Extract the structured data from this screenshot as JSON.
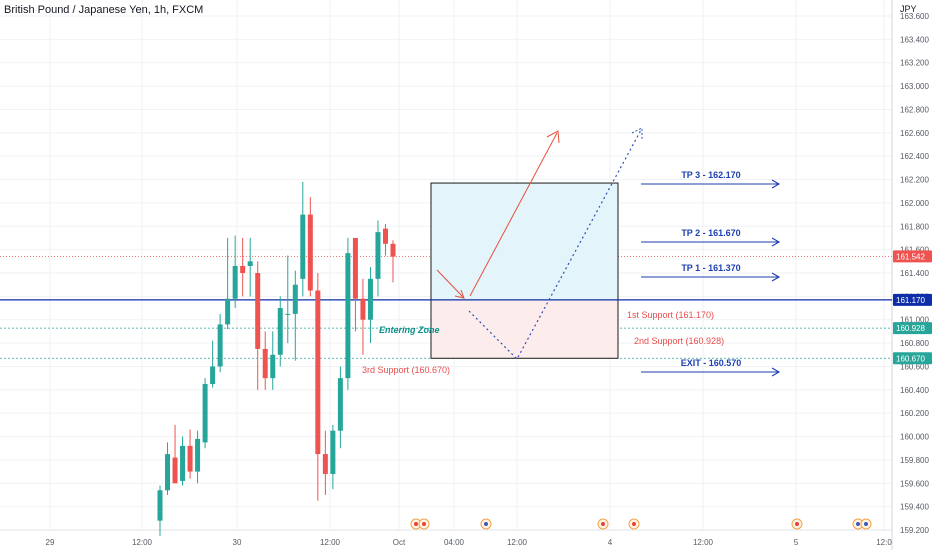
{
  "header": {
    "title": "British Pound / Japanese Yen, 1h, FXCM",
    "currency": "JPY"
  },
  "colors": {
    "up": "#26a69a",
    "down": "#ef5350",
    "blue_line": "#0d2ea8",
    "blue_text": "#1d3fb0",
    "red_text": "#e84c4c",
    "teal_text": "#0b8f8a",
    "zone_fill_top": "#e3f4fb",
    "zone_fill_bottom": "#fdecec",
    "axis_text": "#555a64",
    "grid": "#f0f2f5"
  },
  "chart_data": {
    "type": "candlestick",
    "symbol": "GBPJPY",
    "timeframe": "1h",
    "source": "FXCM",
    "ylim": [
      159.2,
      163.7
    ],
    "y_ticks": [
      "159.200",
      "159.400",
      "159.600",
      "159.800",
      "160.000",
      "160.200",
      "160.400",
      "160.600",
      "160.800",
      "161.000",
      "161.200",
      "161.400",
      "161.600",
      "161.800",
      "162.000",
      "162.200",
      "162.400",
      "162.600",
      "162.800",
      "163.000",
      "163.200",
      "163.400",
      "163.600"
    ],
    "x_ticks": [
      "29",
      "12:00",
      "30",
      "12:00",
      "Oct",
      "04:00",
      "12:00",
      "4",
      "12:00",
      "5",
      "12:0"
    ],
    "candles": [
      {
        "o": 159.28,
        "h": 159.58,
        "l": 159.15,
        "c": 159.54
      },
      {
        "o": 159.54,
        "h": 159.95,
        "l": 159.5,
        "c": 159.85
      },
      {
        "o": 159.82,
        "h": 160.1,
        "l": 159.62,
        "c": 159.6
      },
      {
        "o": 159.62,
        "h": 160.0,
        "l": 159.58,
        "c": 159.92
      },
      {
        "o": 159.92,
        "h": 160.06,
        "l": 159.64,
        "c": 159.7
      },
      {
        "o": 159.7,
        "h": 160.05,
        "l": 159.6,
        "c": 159.98
      },
      {
        "o": 159.95,
        "h": 160.5,
        "l": 159.9,
        "c": 160.45
      },
      {
        "o": 160.45,
        "h": 160.82,
        "l": 160.42,
        "c": 160.6
      },
      {
        "o": 160.6,
        "h": 161.05,
        "l": 160.55,
        "c": 160.96
      },
      {
        "o": 160.96,
        "h": 161.7,
        "l": 160.92,
        "c": 161.18
      },
      {
        "o": 161.18,
        "h": 161.72,
        "l": 161.1,
        "c": 161.46
      },
      {
        "o": 161.46,
        "h": 161.7,
        "l": 161.2,
        "c": 161.4
      },
      {
        "o": 161.46,
        "h": 161.7,
        "l": 161.2,
        "c": 161.5
      },
      {
        "o": 161.4,
        "h": 161.5,
        "l": 160.4,
        "c": 160.75
      },
      {
        "o": 160.75,
        "h": 160.9,
        "l": 160.4,
        "c": 160.5
      },
      {
        "o": 160.5,
        "h": 160.9,
        "l": 160.4,
        "c": 160.7
      },
      {
        "o": 160.7,
        "h": 161.2,
        "l": 160.6,
        "c": 161.1
      },
      {
        "o": 161.05,
        "h": 161.55,
        "l": 160.8,
        "c": 161.05
      },
      {
        "o": 161.05,
        "h": 161.42,
        "l": 160.65,
        "c": 161.3
      },
      {
        "o": 161.35,
        "h": 162.18,
        "l": 161.2,
        "c": 161.9
      },
      {
        "o": 161.9,
        "h": 162.05,
        "l": 161.2,
        "c": 161.25
      },
      {
        "o": 161.25,
        "h": 161.4,
        "l": 159.45,
        "c": 159.85
      },
      {
        "o": 159.85,
        "h": 160.05,
        "l": 159.5,
        "c": 159.68
      },
      {
        "o": 159.68,
        "h": 160.1,
        "l": 159.55,
        "c": 160.05
      },
      {
        "o": 160.05,
        "h": 160.6,
        "l": 159.9,
        "c": 160.5
      },
      {
        "o": 160.5,
        "h": 161.7,
        "l": 160.4,
        "c": 161.57
      },
      {
        "o": 161.7,
        "h": 161.7,
        "l": 160.9,
        "c": 161.18
      },
      {
        "o": 161.18,
        "h": 161.35,
        "l": 160.7,
        "c": 161.0
      },
      {
        "o": 161.0,
        "h": 161.45,
        "l": 160.8,
        "c": 161.35
      },
      {
        "o": 161.35,
        "h": 161.85,
        "l": 161.2,
        "c": 161.75
      },
      {
        "o": 161.78,
        "h": 161.82,
        "l": 161.55,
        "c": 161.65
      },
      {
        "o": 161.65,
        "h": 161.68,
        "l": 161.32,
        "c": 161.54
      }
    ],
    "horizontal_lines": [
      {
        "name": "main-support",
        "price": 161.17,
        "badge": "161.170"
      },
      {
        "name": "second-support",
        "price": 160.928,
        "badge": "160.928"
      },
      {
        "name": "third-support",
        "price": 160.67,
        "badge": "160.670"
      },
      {
        "name": "current-price",
        "price": 161.542,
        "badge": "161.542"
      }
    ],
    "zone": {
      "top": 162.17,
      "bottom": 160.67,
      "split": 161.17
    },
    "targets": [
      {
        "label": "TP 3 - 162.170",
        "price": 162.17
      },
      {
        "label": "TP 2 - 161.670",
        "price": 161.67
      },
      {
        "label": "TP 1 - 161.370",
        "price": 161.37
      },
      {
        "label": "EXIT - 160.570",
        "price": 160.57
      }
    ],
    "annotations": [
      {
        "text": "1st Support (161.170)"
      },
      {
        "text": "2nd Support (160.928)"
      },
      {
        "text": "3rd Support (160.670)"
      },
      {
        "text": "Entering Zone"
      }
    ]
  }
}
